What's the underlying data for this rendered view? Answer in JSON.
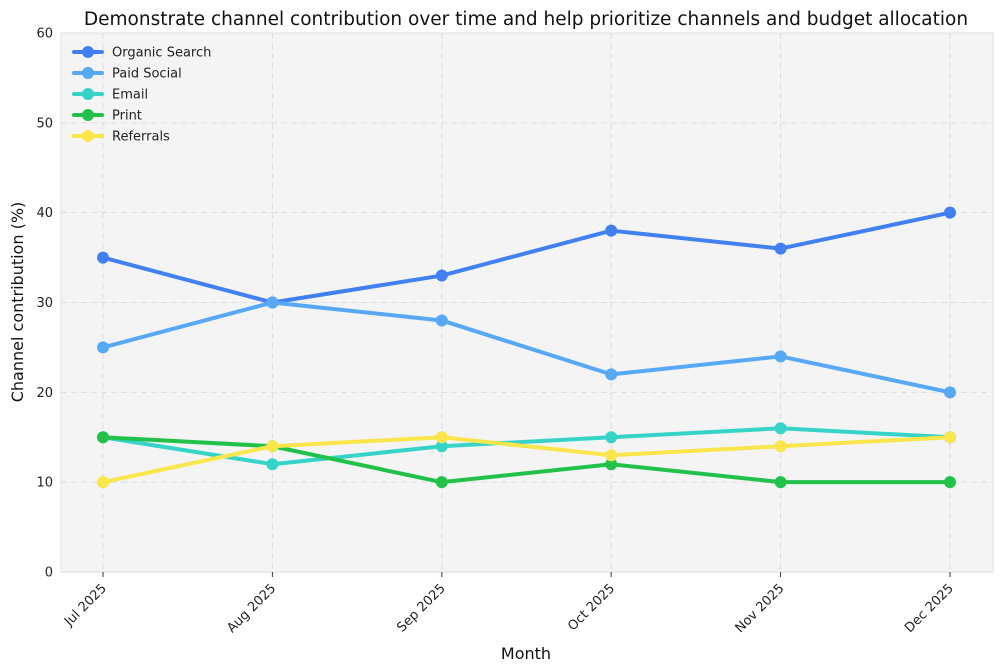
{
  "chart_data": {
    "type": "line",
    "title": "Demonstrate channel contribution over time and help prioritize channels and budget allocation",
    "xlabel": "Month",
    "ylabel": "Channel contribution (%)",
    "categories": [
      "Jul 2025",
      "Aug 2025",
      "Sep 2025",
      "Oct 2025",
      "Nov 2025",
      "Dec 2025"
    ],
    "ylim": [
      0,
      60
    ],
    "yticks": [
      0,
      10,
      20,
      30,
      40,
      50,
      60
    ],
    "grid": true,
    "legend_position": "top-left",
    "series": [
      {
        "name": "Organic Search",
        "color": "#4080F0",
        "values": [
          35,
          30,
          33,
          38,
          36,
          40
        ]
      },
      {
        "name": "Paid Social",
        "color": "#57A8F5",
        "values": [
          25,
          30,
          28,
          22,
          24,
          20
        ]
      },
      {
        "name": "Email",
        "color": "#36D3C8",
        "values": [
          15,
          12,
          14,
          15,
          16,
          15
        ]
      },
      {
        "name": "Print",
        "color": "#22C24A",
        "values": [
          15,
          14,
          10,
          12,
          10,
          10
        ]
      },
      {
        "name": "Referrals",
        "color": "#FAE54A",
        "values": [
          10,
          14,
          15,
          13,
          14,
          15
        ]
      }
    ]
  }
}
